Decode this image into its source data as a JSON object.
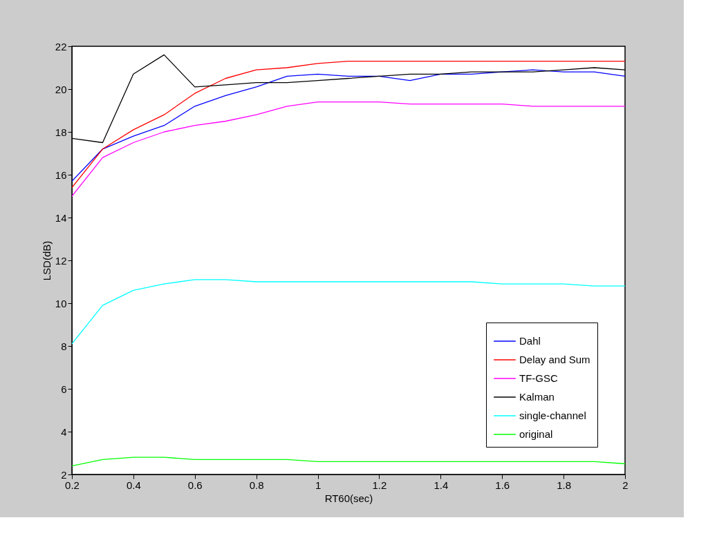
{
  "chart_data": {
    "type": "line",
    "xlabel": "RT60(sec)",
    "ylabel": "LSD(dB)",
    "x": [
      0.2,
      0.3,
      0.4,
      0.5,
      0.6,
      0.7,
      0.8,
      0.9,
      1.0,
      1.1,
      1.2,
      1.3,
      1.4,
      1.5,
      1.6,
      1.7,
      1.8,
      1.9,
      2.0
    ],
    "xlim": [
      0.2,
      2
    ],
    "xticks": [
      0.2,
      0.4,
      0.6,
      0.8,
      1,
      1.2,
      1.4,
      1.6,
      1.8,
      2
    ],
    "ylim": [
      2,
      22
    ],
    "yticks": [
      2,
      4,
      6,
      8,
      10,
      12,
      14,
      16,
      18,
      20,
      22
    ],
    "grid": false,
    "legend": "bottom right",
    "marker": "none",
    "line_style": "solid",
    "series": [
      {
        "name": "Dahl",
        "color": "#0000ff",
        "values": [
          15.7,
          17.2,
          17.8,
          18.3,
          19.2,
          19.7,
          20.1,
          20.6,
          20.7,
          20.6,
          20.6,
          20.4,
          20.7,
          20.7,
          20.8,
          20.9,
          20.8,
          20.8,
          20.6
        ]
      },
      {
        "name": "Delay and Sum",
        "color": "#ff0000",
        "values": [
          15.4,
          17.2,
          18.1,
          18.8,
          19.8,
          20.5,
          20.9,
          21.0,
          21.2,
          21.3,
          21.3,
          21.3,
          21.3,
          21.3,
          21.3,
          21.3,
          21.3,
          21.3,
          21.3
        ]
      },
      {
        "name": "TF-GSC",
        "color": "#ff00ff",
        "values": [
          15.0,
          16.8,
          17.5,
          18.0,
          18.3,
          18.5,
          18.8,
          19.2,
          19.4,
          19.4,
          19.4,
          19.3,
          19.3,
          19.3,
          19.3,
          19.2,
          19.2,
          19.2,
          19.2
        ]
      },
      {
        "name": "Kalman",
        "color": "#000000",
        "values": [
          17.7,
          17.5,
          20.7,
          21.6,
          20.1,
          20.2,
          20.3,
          20.3,
          20.4,
          20.5,
          20.6,
          20.7,
          20.7,
          20.8,
          20.8,
          20.8,
          20.9,
          21.0,
          20.9
        ]
      },
      {
        "name": "single-channel",
        "color": "#00ffff",
        "values": [
          8.1,
          9.9,
          10.6,
          10.9,
          11.1,
          11.1,
          11.0,
          11.0,
          11.0,
          11.0,
          11.0,
          11.0,
          11.0,
          11.0,
          10.9,
          10.9,
          10.9,
          10.8,
          10.8
        ]
      },
      {
        "name": "original",
        "color": "#00ff00",
        "values": [
          2.4,
          2.7,
          2.8,
          2.8,
          2.7,
          2.7,
          2.7,
          2.7,
          2.6,
          2.6,
          2.6,
          2.6,
          2.6,
          2.6,
          2.6,
          2.6,
          2.6,
          2.6,
          2.5
        ]
      }
    ]
  }
}
